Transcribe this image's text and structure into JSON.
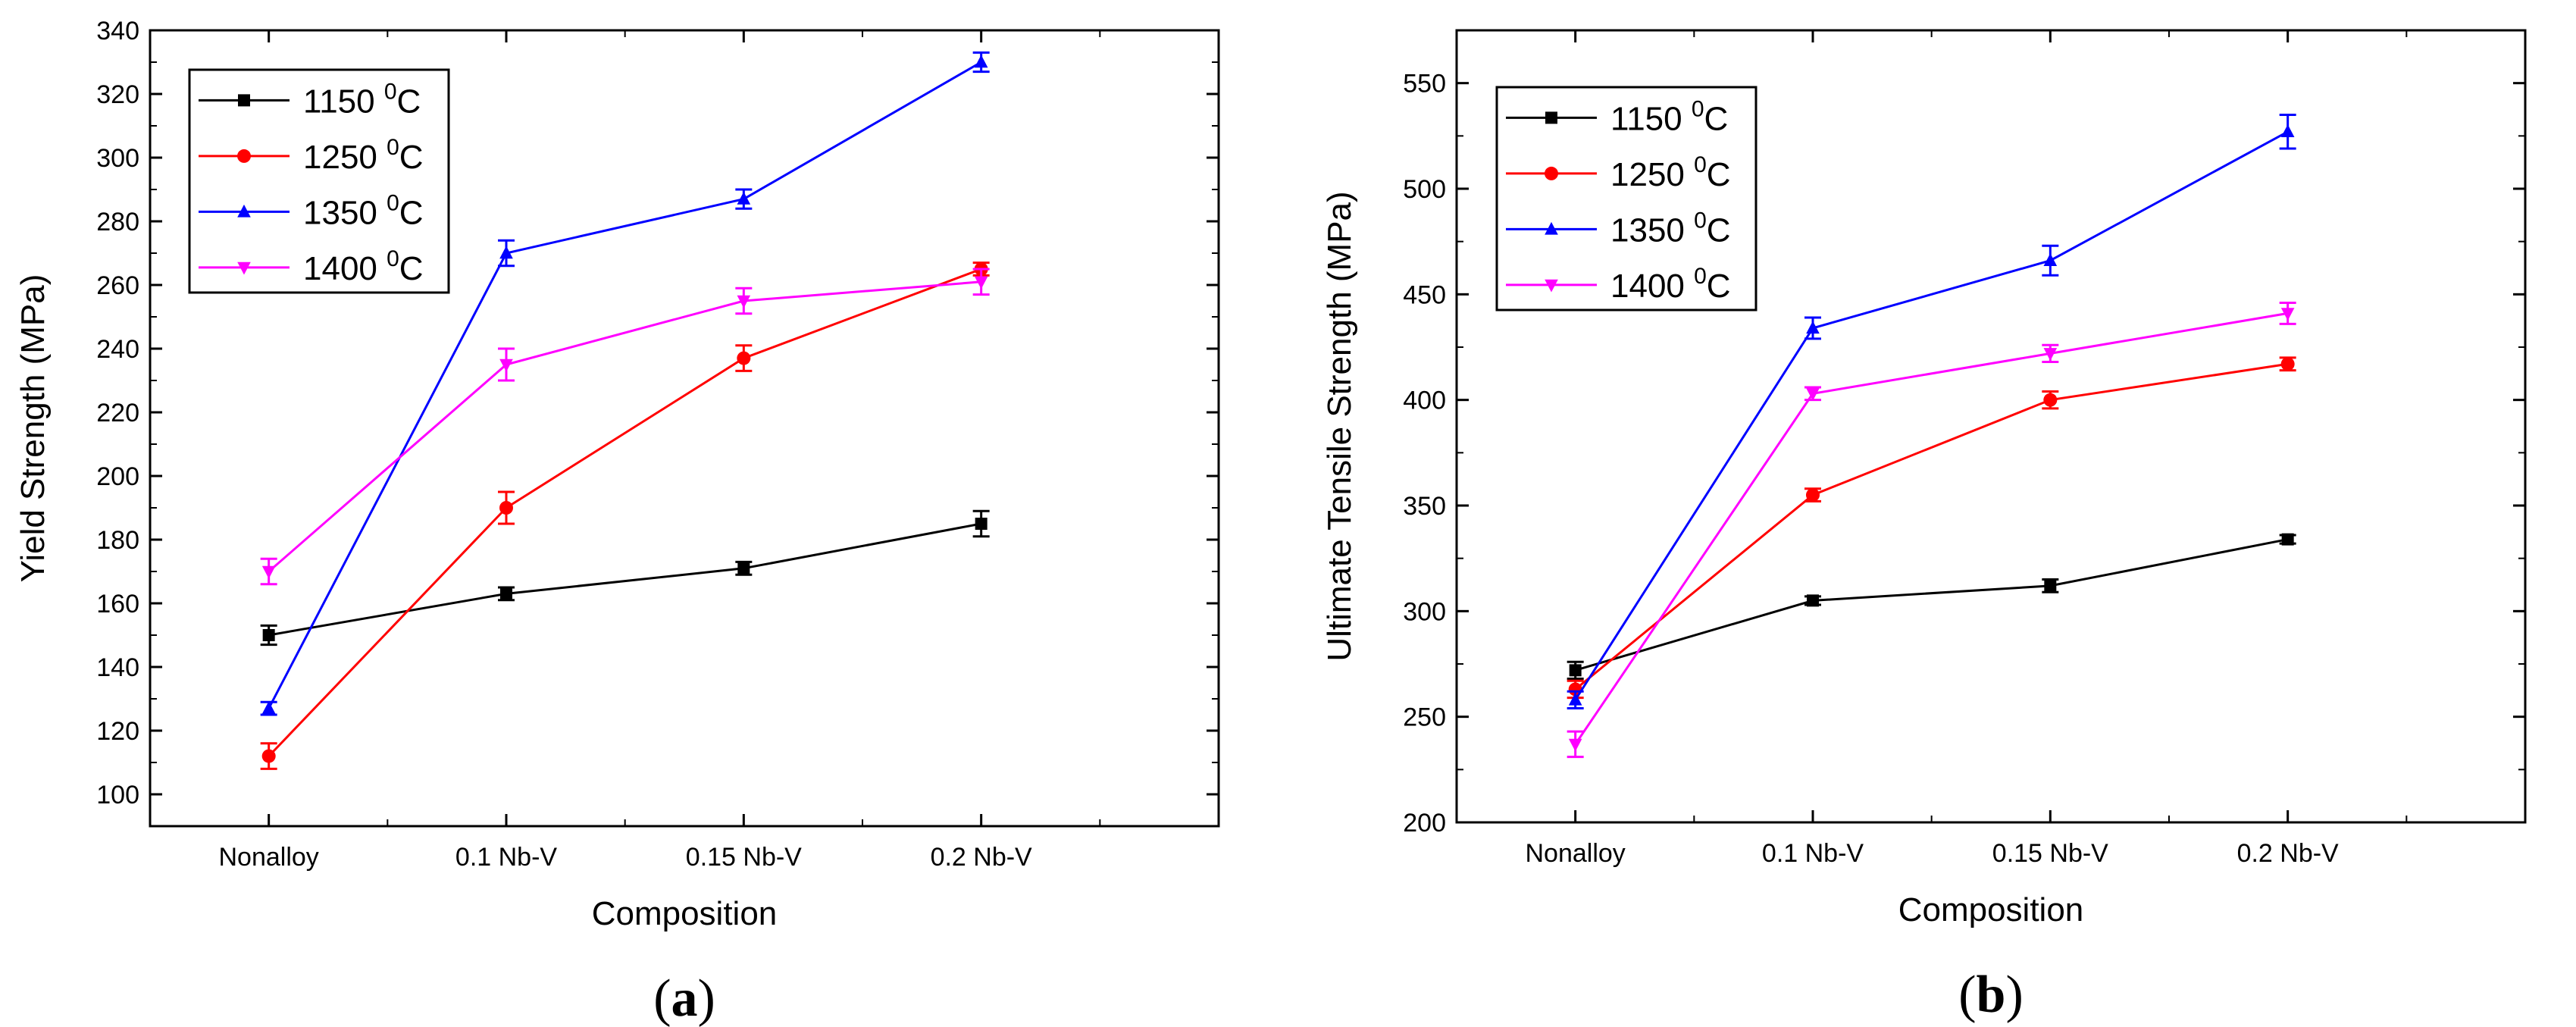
{
  "chart_data": [
    {
      "id": "a",
      "type": "line",
      "panel_label": "a",
      "xlabel": "Composition",
      "ylabel": "Yield Strength (MPa)",
      "categories": [
        "Nonalloy",
        "0.1 Nb-V",
        "0.15 Nb-V",
        "0.2 Nb-V"
      ],
      "ylim": [
        90,
        340
      ],
      "yticks": [
        100,
        120,
        140,
        160,
        180,
        200,
        220,
        240,
        260,
        280,
        300,
        320,
        340
      ],
      "legend_position": "top-left",
      "series": [
        {
          "name": "1150",
          "unit": "C",
          "sup": "0",
          "color": "#000000",
          "marker": "square",
          "values": [
            150,
            163,
            171,
            185
          ],
          "errors": [
            3,
            2,
            2,
            4
          ]
        },
        {
          "name": "1250",
          "unit": "C",
          "sup": "0",
          "color": "#ff0000",
          "marker": "circle",
          "values": [
            112,
            190,
            237,
            265
          ],
          "errors": [
            4,
            5,
            4,
            2
          ]
        },
        {
          "name": "1350",
          "unit": "C",
          "sup": "0",
          "color": "#0000ff",
          "marker": "triangle-up",
          "values": [
            127,
            270,
            287,
            330
          ],
          "errors": [
            2,
            4,
            3,
            3
          ]
        },
        {
          "name": "1400",
          "unit": "C",
          "sup": "0",
          "color": "#ff00ff",
          "marker": "triangle-down",
          "values": [
            170,
            235,
            255,
            261
          ],
          "errors": [
            4,
            5,
            4,
            4
          ]
        }
      ]
    },
    {
      "id": "b",
      "type": "line",
      "panel_label": "b",
      "xlabel": "Composition",
      "ylabel": "Ultimate Tensile Strength (MPa)",
      "categories": [
        "Nonalloy",
        "0.1 Nb-V",
        "0.15 Nb-V",
        "0.2 Nb-V"
      ],
      "ylim": [
        200,
        575
      ],
      "yticks": [
        200,
        250,
        300,
        350,
        400,
        450,
        500,
        550
      ],
      "legend_position": "top-left",
      "series": [
        {
          "name": "1150",
          "unit": "C",
          "sup": "0",
          "color": "#000000",
          "marker": "square",
          "values": [
            272,
            305,
            312,
            334
          ],
          "errors": [
            4,
            2,
            3,
            2
          ]
        },
        {
          "name": "1250",
          "unit": "C",
          "sup": "0",
          "color": "#ff0000",
          "marker": "circle",
          "values": [
            263,
            355,
            400,
            417
          ],
          "errors": [
            4,
            3,
            4,
            3
          ]
        },
        {
          "name": "1350",
          "unit": "C",
          "sup": "0",
          "color": "#0000ff",
          "marker": "triangle-up",
          "values": [
            258,
            434,
            466,
            527
          ],
          "errors": [
            4,
            5,
            7,
            8
          ]
        },
        {
          "name": "1400",
          "unit": "C",
          "sup": "0",
          "color": "#ff00ff",
          "marker": "triangle-down",
          "values": [
            237,
            403,
            422,
            441
          ],
          "errors": [
            6,
            3,
            4,
            5
          ]
        }
      ]
    }
  ]
}
